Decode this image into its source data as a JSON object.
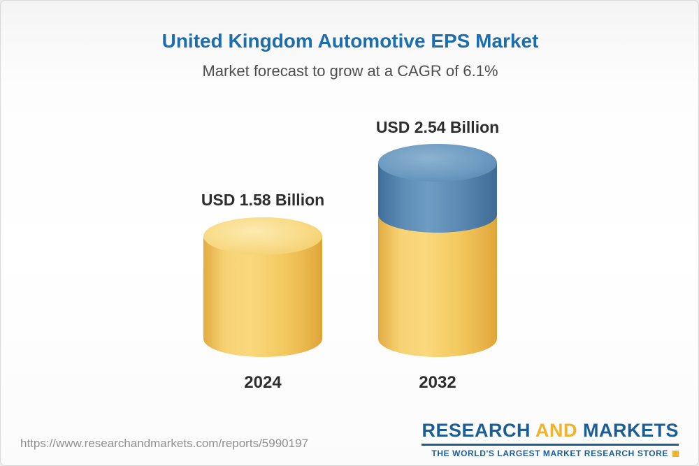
{
  "header": {
    "title": "United Kingdom Automotive EPS Market",
    "subtitle": "Market forecast to grow at a CAGR of 6.1%"
  },
  "chart_data": {
    "type": "bar",
    "title": "United Kingdom Automotive EPS Market",
    "subtitle": "Market forecast to grow at a CAGR of 6.1%",
    "cagr_percent": 6.1,
    "categories": [
      "2024",
      "2032"
    ],
    "values": [
      1.58,
      2.54
    ],
    "unit": "USD Billion",
    "value_labels": [
      "USD 1.58 Billion",
      "USD 2.54 Billion"
    ],
    "bar_style": "3d-cylinder",
    "colors": {
      "base_segment": "#f3c95f",
      "growth_segment": "#5a88b1",
      "title_text": "#1b6dad"
    },
    "legend": "none",
    "grid": false,
    "ylim": [
      0,
      2.54
    ]
  },
  "footer": {
    "url": "https://www.researchandmarkets.com/reports/5990197",
    "logo": {
      "word1": "RESEARCH",
      "word2": "AND",
      "word3": "MARKETS",
      "tagline": "THE WORLD'S LARGEST MARKET RESEARCH STORE"
    }
  }
}
